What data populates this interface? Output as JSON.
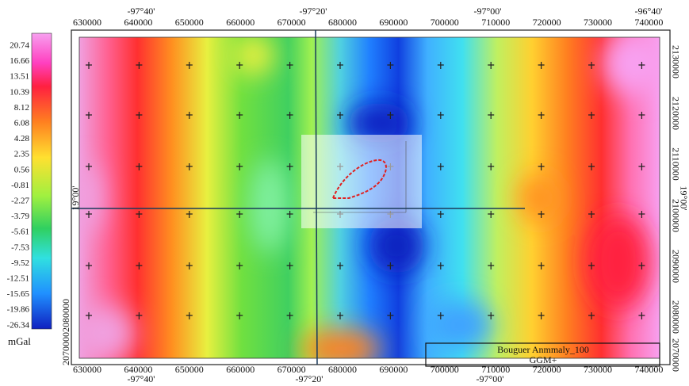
{
  "colorbar": {
    "labels": [
      "20.74",
      "16.66",
      "13.51",
      "10.39",
      "8.12",
      "6.08",
      "4.28",
      "2.35",
      "0.56",
      "-0.81",
      "-2.27",
      "-3.79",
      "-5.61",
      "-7.53",
      "-9.52",
      "-12.51",
      "-15.65",
      "-19.86",
      "-26.34"
    ],
    "unit": "mGal"
  },
  "top_axis": {
    "eastings": [
      "630000",
      "640000",
      "650000",
      "660000",
      "670000",
      "680000",
      "690000",
      "700000",
      "710000",
      "720000",
      "730000",
      "740000"
    ],
    "longitudes": [
      "-97°40'",
      "-97°20'",
      "-97°00'",
      "-96°40'"
    ]
  },
  "bottom_axis": {
    "eastings": [
      "630000",
      "640000",
      "650000",
      "660000",
      "670000",
      "680000",
      "690000",
      "700000",
      "710000",
      "720000",
      "730000",
      "740000"
    ],
    "longitudes": [
      "-97°40'",
      "-97°20'",
      "-97°00'"
    ]
  },
  "right_axis": {
    "northings": [
      "2130000",
      "2120000",
      "2110000",
      "2100000",
      "2090000",
      "2080000",
      "2070000"
    ],
    "latitude": "19°00'"
  },
  "left_axis": {
    "northings": [
      "2080000",
      "2070000"
    ],
    "latitude": "19°00'"
  },
  "legend": {
    "title": "Bouguer Anmmaly_100",
    "subtitle": "GGM+"
  }
}
